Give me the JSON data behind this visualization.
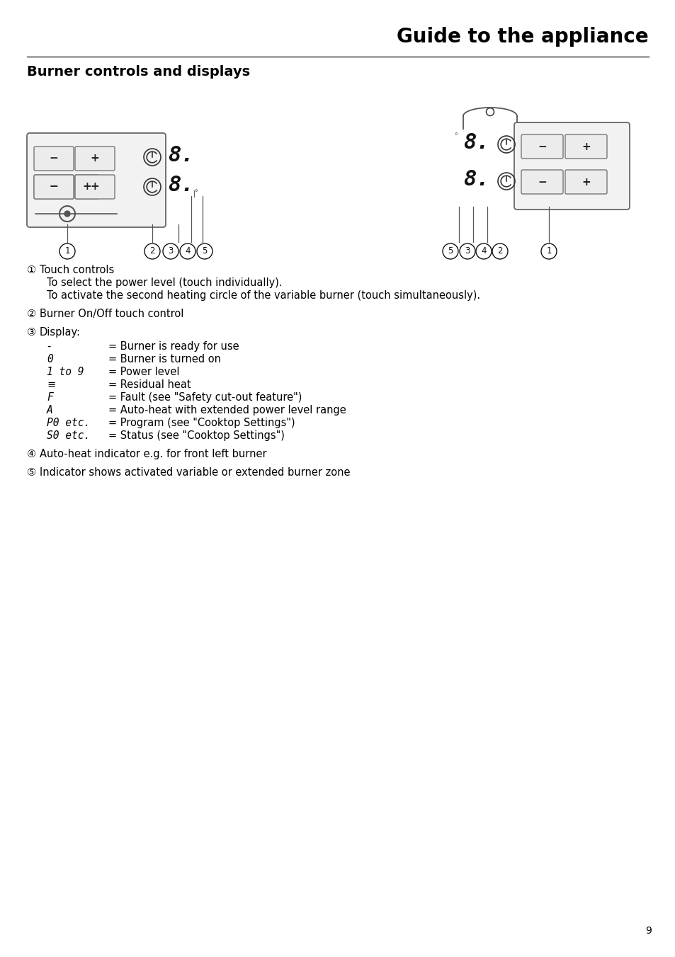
{
  "title": "Guide to the appliance",
  "section_title": "Burner controls and displays",
  "page_number": "9",
  "bg": "#ffffff",
  "text_color": "#000000",
  "title_fontsize": 20,
  "section_fontsize": 14,
  "body_fontsize": 10.5,
  "display_items": [
    [
      "-",
      "= Burner is ready for use",
      false
    ],
    [
      "0",
      "= Burner is turned on",
      true
    ],
    [
      "1 to 9",
      "= Power level",
      true
    ],
    [
      "≡",
      "= Residual heat",
      false
    ],
    [
      "F",
      "= Fault (see \"Safety cut-out feature\")",
      true
    ],
    [
      "A",
      "= Auto-heat with extended power level range",
      true
    ],
    [
      "P0 etc.",
      "= Program (see \"Cooktop Settings\")",
      true
    ],
    [
      "S0 etc.",
      "= Status (see \"Cooktop Settings\")",
      true
    ]
  ]
}
